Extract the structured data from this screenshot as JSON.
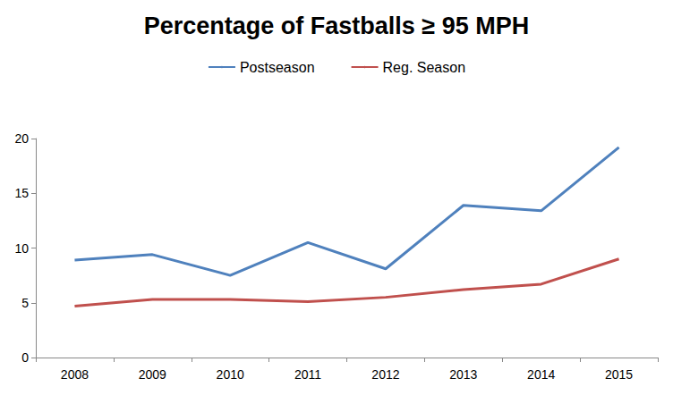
{
  "chart_data": {
    "type": "line",
    "title": "Percentage of Fastballs ≥ 95 MPH",
    "categories": [
      "2008",
      "2009",
      "2010",
      "2011",
      "2012",
      "2013",
      "2014",
      "2015"
    ],
    "series": [
      {
        "name": "Postseason",
        "color": "#4f81bd",
        "values": [
          8.9,
          9.4,
          7.5,
          10.5,
          8.1,
          13.9,
          13.4,
          19.2
        ]
      },
      {
        "name": "Reg. Season",
        "color": "#c0504d",
        "values": [
          4.7,
          5.3,
          5.3,
          5.1,
          5.5,
          6.2,
          6.7,
          9.0
        ]
      }
    ],
    "ylim": [
      0,
      20
    ],
    "yticks": [
      0,
      5,
      10,
      15,
      20
    ],
    "grid": false,
    "legend": "top"
  }
}
